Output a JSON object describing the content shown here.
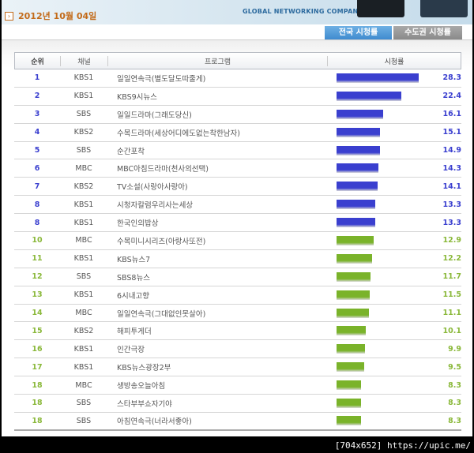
{
  "header": {
    "date": "2012년 10월 04일",
    "slogan": "GLOBAL NETWORKING COMPANY"
  },
  "tabs": [
    {
      "label": "전국 시청률",
      "active": true
    },
    {
      "label": "수도권 시청률",
      "active": false
    }
  ],
  "columns": {
    "rank": "순위",
    "channel": "채널",
    "program": "프로그램",
    "rating": "시청률"
  },
  "colors": {
    "top9_bar": "#3a3fcf",
    "top9_text": "#3a3fcf",
    "rest_bar": "#7ab32a",
    "rest_text": "#8ab83a"
  },
  "rows": [
    {
      "rank": "1",
      "channel": "KBS1",
      "program": "일일연속극(별도달도따줄게)",
      "rating": "28.3"
    },
    {
      "rank": "2",
      "channel": "KBS1",
      "program": "KBS9시뉴스",
      "rating": "22.4"
    },
    {
      "rank": "3",
      "channel": "SBS",
      "program": "일일드라마(그래도당신)",
      "rating": "16.1"
    },
    {
      "rank": "4",
      "channel": "KBS2",
      "program": "수목드라마(세상어디에도없는착한남자)",
      "rating": "15.1"
    },
    {
      "rank": "5",
      "channel": "SBS",
      "program": "순간포착",
      "rating": "14.9"
    },
    {
      "rank": "6",
      "channel": "MBC",
      "program": "MBC아침드라마(천사의선택)",
      "rating": "14.3"
    },
    {
      "rank": "7",
      "channel": "KBS2",
      "program": "TV소설(사랑아사랑아)",
      "rating": "14.1"
    },
    {
      "rank": "8",
      "channel": "KBS1",
      "program": "시청자칼럼우리사는세상",
      "rating": "13.3"
    },
    {
      "rank": "8",
      "channel": "KBS1",
      "program": "한국인의밥상",
      "rating": "13.3"
    },
    {
      "rank": "10",
      "channel": "MBC",
      "program": "수목미니시리즈(아랑사또전)",
      "rating": "12.9"
    },
    {
      "rank": "11",
      "channel": "KBS1",
      "program": "KBS뉴스7",
      "rating": "12.2"
    },
    {
      "rank": "12",
      "channel": "SBS",
      "program": "SBS8뉴스",
      "rating": "11.7"
    },
    {
      "rank": "13",
      "channel": "KBS1",
      "program": "6시내고향",
      "rating": "11.5"
    },
    {
      "rank": "14",
      "channel": "MBC",
      "program": "일일연속극(그대없인못살아)",
      "rating": "11.1"
    },
    {
      "rank": "15",
      "channel": "KBS2",
      "program": "해피투게더",
      "rating": "10.1"
    },
    {
      "rank": "16",
      "channel": "KBS1",
      "program": "인간극장",
      "rating": "9.9"
    },
    {
      "rank": "17",
      "channel": "KBS1",
      "program": "KBS뉴스광장2부",
      "rating": "9.5"
    },
    {
      "rank": "18",
      "channel": "MBC",
      "program": "생방송오늘아침",
      "rating": "8.3"
    },
    {
      "rank": "18",
      "channel": "SBS",
      "program": "스타부부쇼자기야",
      "rating": "8.3"
    },
    {
      "rank": "18",
      "channel": "SBS",
      "program": "아침연속극(너라서좋아)",
      "rating": "8.3"
    }
  ],
  "watermark": "[704x652] https://upic.me/"
}
